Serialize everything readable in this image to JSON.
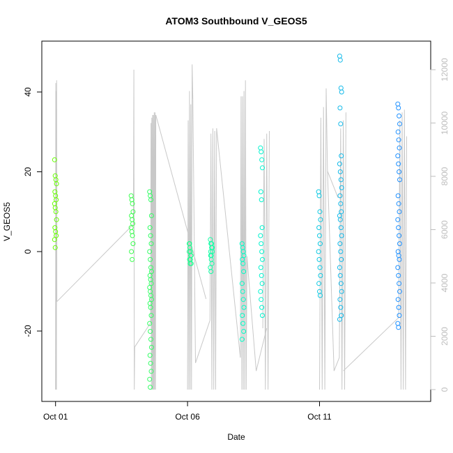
{
  "chart_data": {
    "type": "scatter",
    "title": "ATOM3 Southbound V_GEOS5",
    "xlabel": "Date",
    "ylabel": "V_GEOS5",
    "x_ticks": [
      "Oct 01",
      "Oct 06",
      "Oct 11"
    ],
    "y_ticks": [
      "-20",
      "0",
      "20",
      "40"
    ],
    "y2_ticks": [
      "0",
      "2000",
      "4000",
      "6000",
      "8000",
      "10000",
      "12000"
    ],
    "xlim": [
      "2016-10-01",
      "2016-10-15"
    ],
    "ylim": [
      -35,
      50
    ],
    "y2lim": [
      0,
      12000
    ],
    "grid": false,
    "colors": {
      "point_start": "#66ff00",
      "point_end": "#1e90ff",
      "altitude_line": "#c8c8c8",
      "right_axis": "#bdbdbd"
    },
    "series": [
      {
        "type": "scatter",
        "day_groups": [
          {
            "day": 1.0,
            "values": [
              23,
              19,
              18,
              17,
              15,
              14,
              13,
              12,
              11,
              10,
              8,
              6,
              5,
              4,
              3,
              1
            ]
          },
          {
            "day": 3.9,
            "values": [
              14,
              13,
              12,
              10,
              9,
              8,
              7,
              6,
              5,
              4,
              2,
              0,
              -2
            ]
          },
          {
            "day": 4.6,
            "values": [
              15,
              14,
              13,
              9,
              6,
              4,
              2,
              0,
              -2,
              -4,
              -5,
              -6,
              -7,
              -8,
              -9,
              -10,
              -11,
              -12,
              -13,
              -14,
              -16,
              -18,
              -20,
              -22,
              -24,
              -26,
              -28,
              -30,
              -32,
              -34
            ]
          },
          {
            "day": 6.1,
            "values": [
              2,
              1,
              0,
              -1,
              -2,
              -3,
              -1,
              0,
              1,
              -2,
              -3,
              2
            ]
          },
          {
            "day": 6.9,
            "values": [
              3,
              2,
              1,
              0,
              -1,
              -2,
              -3,
              -4,
              -5,
              2,
              1,
              0,
              -1
            ]
          },
          {
            "day": 8.1,
            "values": [
              2,
              1,
              0,
              -1,
              -2,
              -3,
              -5,
              -8,
              -10,
              -12,
              -14,
              -16,
              -18,
              -20,
              -22
            ]
          },
          {
            "day": 8.8,
            "values": [
              26,
              25,
              23,
              21,
              15,
              13,
              6,
              4,
              2,
              0,
              -2,
              -4,
              -6,
              -8,
              -10,
              -12,
              -14,
              -16
            ]
          },
          {
            "day": 11.0,
            "values": [
              15,
              14,
              10,
              8,
              6,
              4,
              2,
              0,
              -2,
              -4,
              -6,
              -8,
              -10,
              -11
            ]
          },
          {
            "day": 11.8,
            "values": [
              49,
              48,
              41,
              40,
              36,
              32,
              24,
              22,
              20,
              18,
              16,
              14,
              12,
              10,
              9,
              8,
              6,
              4,
              2,
              0,
              -2,
              -4,
              -6,
              -8,
              -10,
              -12,
              -14,
              -16,
              -17
            ]
          },
          {
            "day": 14.0,
            "values": [
              37,
              36,
              34,
              32,
              30,
              28,
              26,
              24,
              22,
              20,
              18,
              14,
              12,
              10,
              8,
              6,
              4,
              2,
              0,
              -1,
              -2,
              -4,
              -6,
              -8,
              -10,
              -12,
              -14,
              -16,
              -18,
              -19
            ]
          }
        ]
      },
      {
        "type": "line",
        "axis": "right",
        "segments": [
          {
            "start": 1.0,
            "end": 1.05,
            "values": [
              0,
              11500,
              0,
              11200,
              0,
              11600,
              3300
            ]
          },
          {
            "start": 1.05,
            "end": 3.95,
            "values": [
              3300,
              6200
            ]
          },
          {
            "start": 3.95,
            "end": 4.0,
            "values": [
              6200,
              12000,
              0,
              1600
            ]
          },
          {
            "start": 4.0,
            "end": 4.6,
            "values": [
              1600,
              2500
            ]
          },
          {
            "start": 4.6,
            "end": 4.8,
            "values": [
              2500,
              10000,
              0,
              10200,
              0,
              10300,
              0,
              10300,
              0,
              10400,
              0,
              10400,
              0,
              10300
            ]
          },
          {
            "start": 4.8,
            "end": 6.7,
            "values": [
              10300,
              3400
            ]
          },
          {
            "start": 6.0,
            "end": 6.2,
            "values": [
              0,
              10100,
              0,
              11200,
              0,
              10700,
              0,
              12200,
              10900
            ]
          },
          {
            "start": 6.2,
            "end": 6.3,
            "values": [
              10900,
              1000
            ]
          },
          {
            "start": 6.3,
            "end": 6.85,
            "values": [
              1000,
              2600
            ]
          },
          {
            "start": 6.85,
            "end": 7.1,
            "values": [
              2600,
              9600,
              0,
              9800,
              0,
              9700,
              0,
              9800
            ]
          },
          {
            "start": 7.1,
            "end": 8.0,
            "values": [
              9800,
              1200
            ]
          },
          {
            "start": 8.0,
            "end": 8.25,
            "values": [
              1200,
              11000,
              0,
              11000,
              0,
              11200,
              0,
              11600,
              0,
              5000
            ]
          },
          {
            "start": 8.25,
            "end": 8.6,
            "values": [
              5000,
              700
            ]
          },
          {
            "start": 8.6,
            "end": 9.0,
            "values": [
              700,
              2300
            ]
          },
          {
            "start": 8.85,
            "end": 9.1,
            "values": [
              2300,
              9400,
              0,
              9600,
              0,
              9700
            ]
          },
          {
            "start": 11.0,
            "end": 11.3,
            "values": [
              0,
              10200,
              0,
              10600,
              0,
              11300,
              8200
            ]
          },
          {
            "start": 11.3,
            "end": 11.7,
            "values": [
              8200,
              7200
            ]
          },
          {
            "start": 11.3,
            "end": 11.55,
            "values": [
              8200,
              700
            ]
          },
          {
            "start": 11.55,
            "end": 11.75,
            "values": [
              700,
              1200
            ]
          },
          {
            "start": 11.75,
            "end": 12.0,
            "values": [
              1200,
              9800,
              0,
              10100,
              0,
              10400
            ]
          },
          {
            "start": 11.9,
            "end": 14.0,
            "values": [
              700,
              2700
            ]
          },
          {
            "start": 14.0,
            "end": 14.3,
            "values": [
              2700,
              10100,
              0,
              10400,
              0,
              10500,
              0,
              9500
            ]
          }
        ]
      }
    ]
  }
}
